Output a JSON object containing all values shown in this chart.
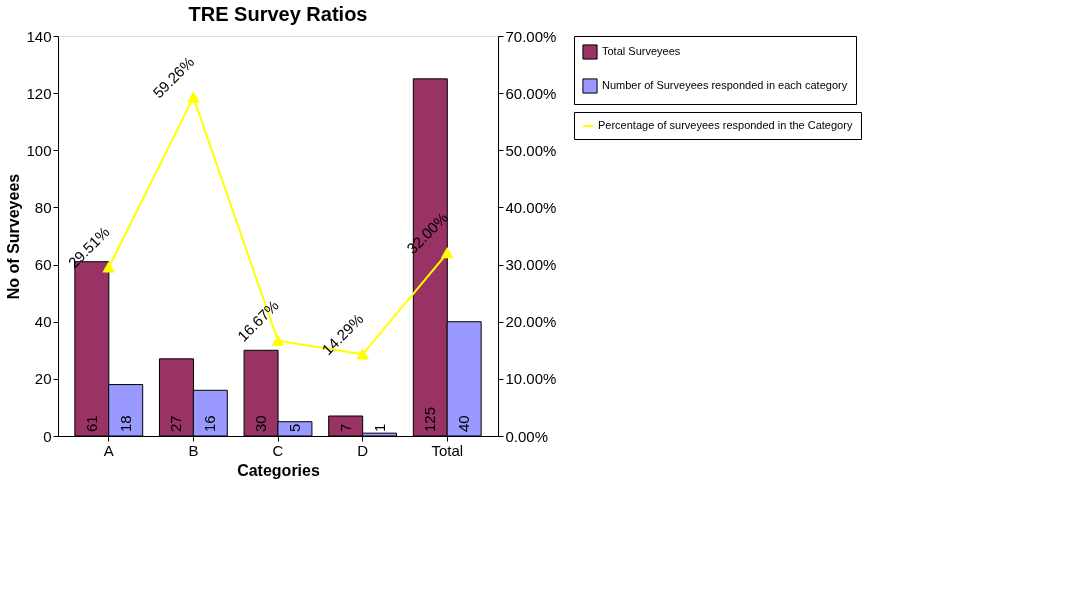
{
  "chart_data": {
    "type": "bar",
    "title": "TRE Survey Ratios",
    "xlabel": "Categories",
    "ylabel": "No of Surveyees",
    "categories": [
      "A",
      "B",
      "C",
      "D",
      "Total"
    ],
    "series": [
      {
        "name": "Total Surveyees",
        "color": "#993366",
        "values": [
          61,
          27,
          30,
          7,
          125
        ],
        "value_labels": [
          "61",
          "27",
          "30",
          "7",
          "125"
        ]
      },
      {
        "name": "Number of Surveyees responded in each category",
        "color": "#9999ff",
        "values": [
          18,
          16,
          5,
          1,
          40
        ],
        "value_labels": [
          "18",
          "16",
          "5",
          "1",
          "40"
        ]
      },
      {
        "name": "Percentage of surveyees responded in the Category",
        "type": "line",
        "axis": "y2",
        "color": "#ffff00",
        "marker": "triangle",
        "values": [
          29.51,
          59.26,
          16.67,
          14.29,
          32.0
        ],
        "value_labels": [
          "29.51%",
          "59.26%",
          "16.67%",
          "14.29%",
          "32.00%"
        ]
      }
    ],
    "ylim": [
      0,
      140
    ],
    "yticks": [
      0,
      20,
      40,
      60,
      80,
      100,
      120,
      140
    ],
    "y2lim": [
      0,
      70
    ],
    "y2ticks": [
      {
        "value": 0,
        "label": "0.00%"
      },
      {
        "value": 10,
        "label": "10.00%"
      },
      {
        "value": 20,
        "label": "20.00%"
      },
      {
        "value": 30,
        "label": "30.00%"
      },
      {
        "value": 40,
        "label": "40.00%"
      },
      {
        "value": 50,
        "label": "50.00%"
      },
      {
        "value": 60,
        "label": "60.00%"
      },
      {
        "value": 70,
        "label": "70.00%"
      }
    ],
    "legend": "right",
    "grid": false
  }
}
